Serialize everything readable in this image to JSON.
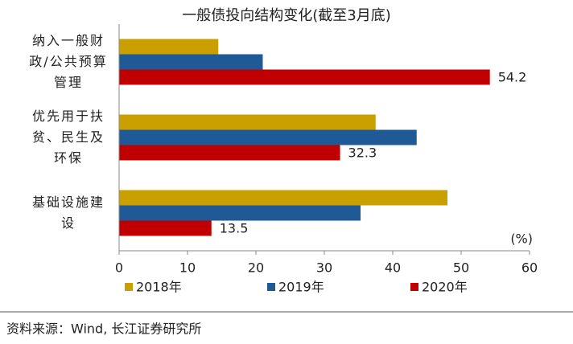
{
  "chart_data": {
    "type": "hbar",
    "title": "一般债投向结构变化(截至3月底)",
    "categories": [
      "纳入一般财政/公共预算管理",
      "优先用于扶贫、民生及环保",
      "基础设施建设"
    ],
    "series": [
      {
        "name": "2018年",
        "color": "#c9a000",
        "values": [
          14.5,
          37.5,
          48
        ]
      },
      {
        "name": "2019年",
        "color": "#1f5a96",
        "values": [
          21,
          43.5,
          35.3
        ]
      },
      {
        "name": "2020年",
        "color": "#c00000",
        "values": [
          54.2,
          32.3,
          13.5
        ],
        "show_labels": true
      }
    ],
    "xlim": [
      0,
      60
    ],
    "xticks": [
      0,
      10,
      20,
      30,
      40,
      50,
      60
    ],
    "x_unit": "(%)",
    "source": "资料来源：Wind, 长江证券研究所"
  }
}
